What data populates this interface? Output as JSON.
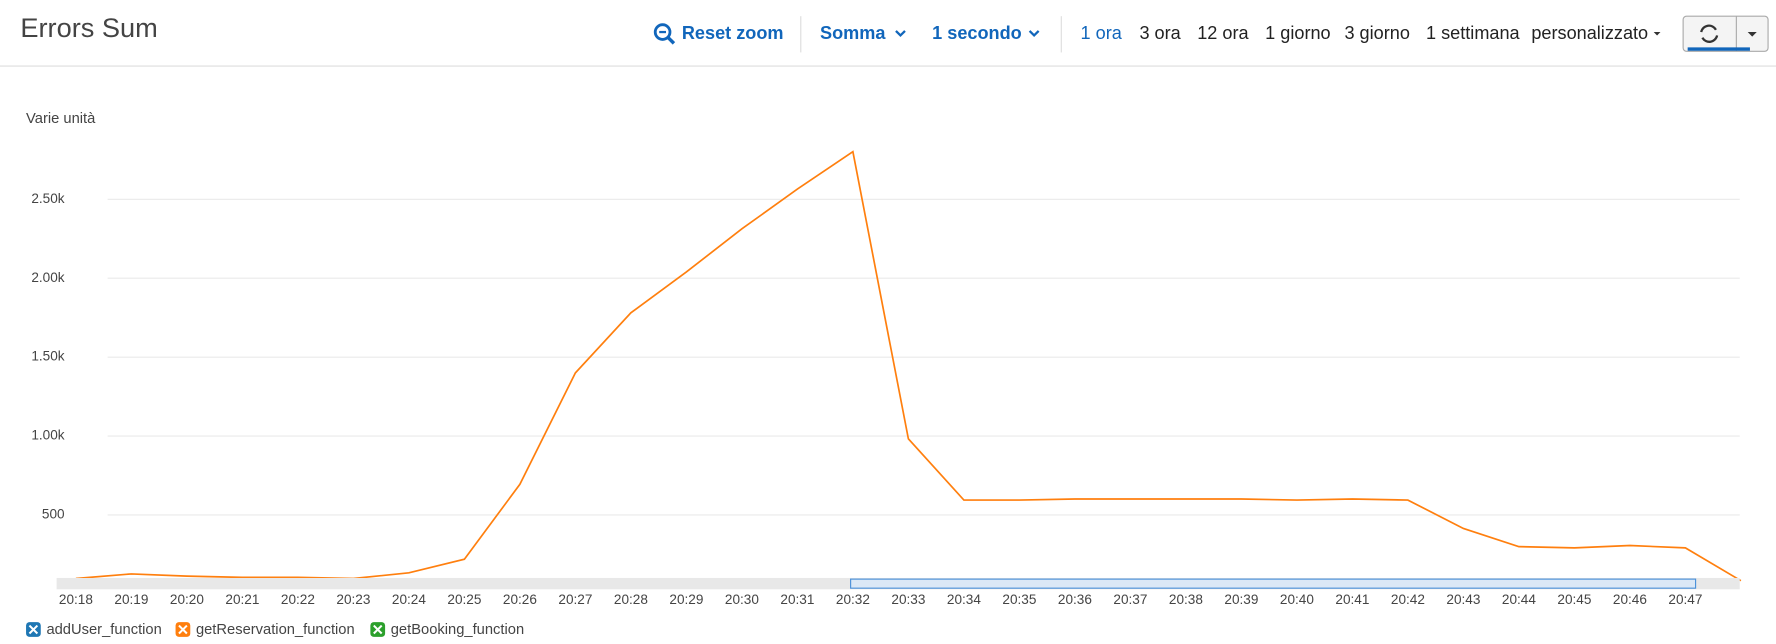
{
  "toolbar": {
    "title": "Errors Sum",
    "reset_zoom": "Reset zoom",
    "statistic": "Somma",
    "period": "1 secondo",
    "ranges": [
      "1 ora",
      "3 ora",
      "12 ora",
      "1 giorno",
      "3 giorno",
      "1 settimana"
    ],
    "active_range": 0,
    "custom": "personalizzato"
  },
  "chart_data": {
    "type": "line",
    "ylabel": "Varie unità",
    "categories": [
      "20:18",
      "20:19",
      "20:20",
      "20:21",
      "20:22",
      "20:23",
      "20:24",
      "20:25",
      "20:26",
      "20:27",
      "20:28",
      "20:29",
      "20:30",
      "20:31",
      "20:32",
      "20:33",
      "20:34",
      "20:35",
      "20:36",
      "20:37",
      "20:38",
      "20:39",
      "20:40",
      "20:41",
      "20:42",
      "20:43",
      "20:44",
      "20:45",
      "20:46",
      "20:47",
      null
    ],
    "series": [
      {
        "name": "getReservation_function",
        "color": "#ff7f0e",
        "values": [
          97,
          126,
          112,
          104,
          104,
          97,
          133,
          219,
          694,
          1400,
          1781,
          2040,
          2313,
          2565,
          2802,
          982,
          594,
          594,
          601,
          601,
          601,
          601,
          594,
          601,
          594,
          414,
          299,
          291,
          306,
          291,
          83
        ]
      }
    ],
    "legend": [
      {
        "name": "addUser_function",
        "color": "#1f77b4"
      },
      {
        "name": "getReservation_function",
        "color": "#ff7f0e"
      },
      {
        "name": "getBooking_function",
        "color": "#2ca02c"
      }
    ],
    "ylim": [
      50,
      2900
    ],
    "yticks": [
      500,
      {
        "value": 1000,
        "label": "1.00k"
      },
      {
        "value": 1500,
        "label": "1.50k"
      },
      {
        "value": 2000,
        "label": "2.00k"
      },
      {
        "value": 2500,
        "label": "2.50k"
      }
    ],
    "grid": true
  }
}
